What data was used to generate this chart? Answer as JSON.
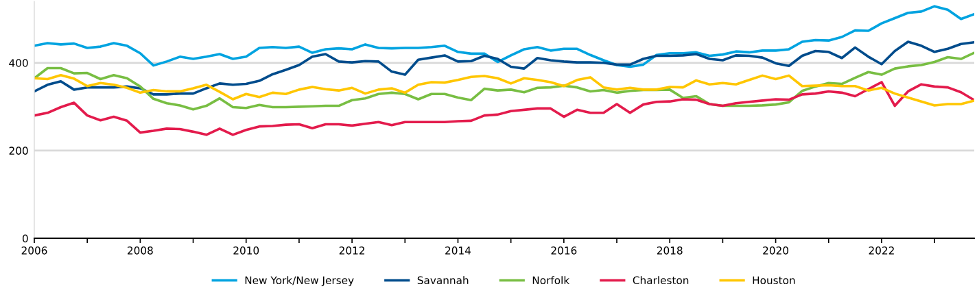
{
  "chart_data": {
    "type": "line",
    "x": [
      2006,
      2006.25,
      2006.5,
      2006.75,
      2007,
      2007.25,
      2007.5,
      2007.75,
      2008,
      2008.25,
      2008.5,
      2008.75,
      2009,
      2009.25,
      2009.5,
      2009.75,
      2010,
      2010.25,
      2010.5,
      2010.75,
      2011,
      2011.25,
      2011.5,
      2011.75,
      2012,
      2012.25,
      2012.5,
      2012.75,
      2013,
      2013.25,
      2013.5,
      2013.75,
      2014,
      2014.25,
      2014.5,
      2014.75,
      2015,
      2015.25,
      2015.5,
      2015.75,
      2016,
      2016.25,
      2016.5,
      2016.75,
      2017,
      2017.25,
      2017.5,
      2017.75,
      2018,
      2018.25,
      2018.5,
      2018.75,
      2019,
      2019.25,
      2019.5,
      2019.75,
      2020,
      2020.25,
      2020.5,
      2020.75,
      2021,
      2021.25,
      2021.5,
      2021.75,
      2022,
      2022.25,
      2022.5,
      2022.75,
      2023,
      2023.25,
      2023.5,
      2023.75
    ],
    "series": [
      {
        "name": "New York/New Jersey",
        "color": "#00a3e0",
        "values": [
          439,
          445,
          442,
          444,
          434,
          437,
          445,
          439,
          422,
          394,
          403,
          414,
          409,
          414,
          420,
          409,
          414,
          434,
          436,
          434,
          437,
          423,
          431,
          433,
          431,
          442,
          434,
          433,
          434,
          434,
          436,
          439,
          425,
          421,
          421,
          402,
          417,
          431,
          436,
          428,
          432,
          432,
          418,
          406,
          395,
          391,
          396,
          418,
          422,
          422,
          424,
          416,
          419,
          426,
          424,
          428,
          428,
          431,
          448,
          452,
          451,
          459,
          474,
          473,
          490,
          502,
          514,
          517,
          529,
          521,
          500,
          511
        ]
      },
      {
        "name": "Savannah",
        "color": "#004c8c",
        "values": [
          335,
          350,
          358,
          339,
          344,
          344,
          344,
          346,
          342,
          328,
          328,
          330,
          330,
          342,
          353,
          350,
          352,
          359,
          374,
          384,
          395,
          414,
          420,
          403,
          401,
          404,
          403,
          380,
          373,
          407,
          412,
          417,
          403,
          404,
          416,
          409,
          391,
          387,
          411,
          406,
          403,
          401,
          401,
          400,
          396,
          396,
          409,
          416,
          416,
          417,
          420,
          409,
          406,
          417,
          416,
          412,
          399,
          393,
          416,
          427,
          425,
          411,
          435,
          414,
          397,
          427,
          448,
          439,
          425,
          432,
          443,
          447
        ]
      },
      {
        "name": "Norfolk",
        "color": "#78be43",
        "values": [
          365,
          388,
          388,
          376,
          377,
          363,
          372,
          365,
          346,
          318,
          308,
          303,
          294,
          302,
          319,
          299,
          297,
          304,
          299,
          299,
          300,
          301,
          302,
          302,
          315,
          319,
          329,
          332,
          329,
          317,
          329,
          329,
          321,
          315,
          341,
          337,
          339,
          333,
          343,
          344,
          348,
          344,
          335,
          338,
          332,
          336,
          338,
          338,
          339,
          320,
          324,
          306,
          302,
          302,
          302,
          303,
          305,
          310,
          336,
          346,
          354,
          352,
          366,
          379,
          373,
          387,
          392,
          395,
          402,
          413,
          409,
          423
        ]
      },
      {
        "name": "Charleston",
        "color": "#e31b4c",
        "values": [
          280,
          286,
          299,
          309,
          280,
          269,
          277,
          268,
          241,
          245,
          250,
          249,
          243,
          236,
          250,
          236,
          247,
          255,
          256,
          259,
          260,
          251,
          260,
          260,
          257,
          261,
          265,
          258,
          265,
          265,
          265,
          265,
          267,
          268,
          280,
          282,
          290,
          293,
          296,
          296,
          277,
          293,
          286,
          286,
          306,
          286,
          305,
          311,
          312,
          317,
          316,
          306,
          302,
          308,
          311,
          314,
          317,
          316,
          328,
          330,
          335,
          332,
          324,
          340,
          356,
          302,
          335,
          351,
          346,
          344,
          333,
          315
        ]
      },
      {
        "name": "Houston",
        "color": "#ffc600",
        "values": [
          365,
          363,
          372,
          364,
          347,
          354,
          350,
          343,
          332,
          338,
          335,
          335,
          342,
          350,
          334,
          317,
          329,
          322,
          332,
          329,
          339,
          345,
          340,
          337,
          343,
          330,
          339,
          342,
          332,
          350,
          356,
          355,
          361,
          368,
          370,
          365,
          353,
          365,
          361,
          356,
          347,
          361,
          367,
          344,
          339,
          343,
          339,
          339,
          345,
          344,
          360,
          351,
          354,
          351,
          361,
          371,
          363,
          371,
          347,
          348,
          349,
          347,
          347,
          337,
          343,
          330,
          321,
          312,
          303,
          306,
          306,
          314
        ]
      }
    ],
    "xlim": [
      2006,
      2023.75
    ],
    "xticks": [
      2006,
      {
        "value": 2007,
        "label": null
      },
      2008,
      {
        "value": 2009,
        "label": null
      },
      2010,
      {
        "value": 2011,
        "label": null
      },
      2012,
      {
        "value": 2013,
        "label": null
      },
      2014,
      {
        "value": 2015,
        "label": null
      },
      2016,
      {
        "value": 2017,
        "label": null
      },
      2018,
      {
        "value": 2019,
        "label": null
      },
      2020,
      {
        "value": 2021,
        "label": null
      },
      2022,
      {
        "value": 2023,
        "label": null
      }
    ],
    "ylim": [
      0,
      540
    ],
    "yticks": [
      0,
      200,
      400
    ],
    "grid": "y",
    "legend": "bottom",
    "marker": "none",
    "line_style": "solid"
  }
}
